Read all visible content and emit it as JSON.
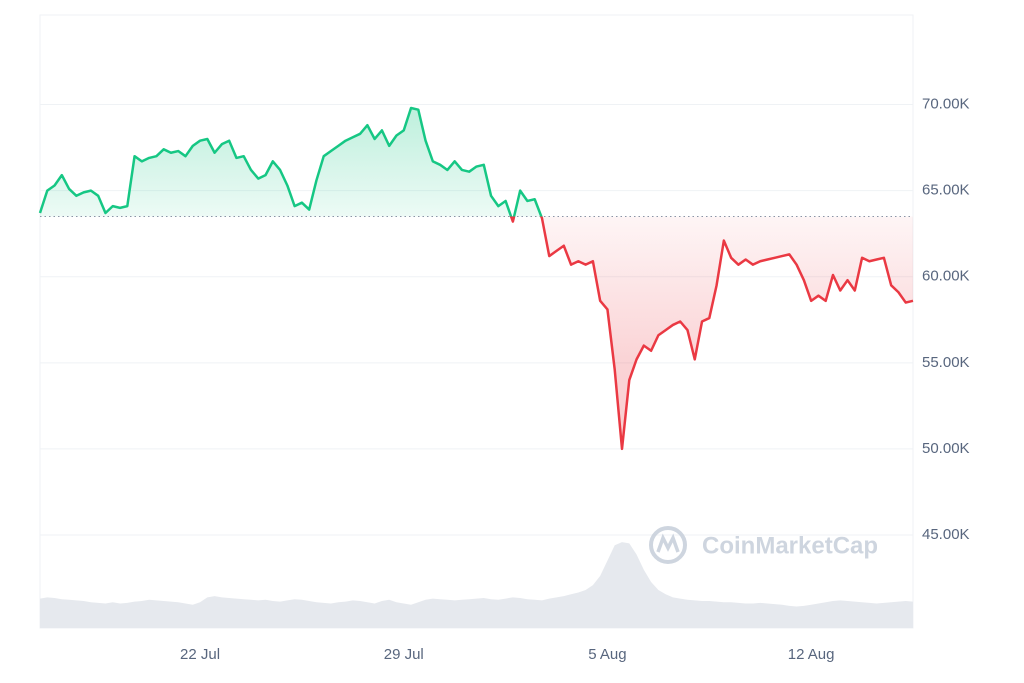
{
  "chart_data": {
    "type": "line",
    "categories": [
      null,
      null,
      null,
      null,
      null,
      null,
      null,
      null,
      null,
      null,
      null,
      null,
      null,
      null,
      null,
      null,
      null,
      null,
      null,
      null,
      null,
      null,
      "22 Jul",
      null,
      null,
      null,
      null,
      null,
      null,
      null,
      null,
      null,
      null,
      null,
      null,
      null,
      null,
      null,
      null,
      null,
      null,
      null,
      null,
      null,
      null,
      null,
      null,
      null,
      null,
      null,
      "29 Jul",
      null,
      null,
      null,
      null,
      null,
      null,
      null,
      null,
      null,
      null,
      null,
      null,
      null,
      null,
      null,
      null,
      null,
      null,
      null,
      null,
      null,
      null,
      null,
      null,
      null,
      null,
      null,
      "5 Aug",
      null,
      null,
      null,
      null,
      null,
      null,
      null,
      null,
      null,
      null,
      null,
      null,
      null,
      null,
      null,
      null,
      null,
      null,
      null,
      null,
      null,
      null,
      null,
      null,
      null,
      null,
      null,
      "12 Aug",
      null,
      null,
      null,
      null,
      null,
      null,
      null,
      null,
      null,
      null,
      null,
      null,
      null,
      null
    ],
    "values": [
      63700,
      65000,
      65300,
      65900,
      65100,
      64700,
      64900,
      65000,
      64700,
      63700,
      64100,
      64000,
      64100,
      67000,
      66700,
      66900,
      67000,
      67400,
      67200,
      67300,
      67000,
      67600,
      67900,
      68000,
      67200,
      67700,
      67900,
      66900,
      67000,
      66200,
      65700,
      65900,
      66700,
      66200,
      65300,
      64100,
      64300,
      63900,
      65600,
      67000,
      67300,
      67600,
      67900,
      68100,
      68300,
      68800,
      68000,
      68500,
      67600,
      68200,
      68500,
      69800,
      69700,
      67900,
      66700,
      66500,
      66200,
      66700,
      66200,
      66100,
      66400,
      66500,
      64700,
      64100,
      64400,
      63200,
      65000,
      64400,
      64500,
      63400,
      61200,
      61500,
      61800,
      60700,
      60900,
      60700,
      60900,
      58600,
      58100,
      54600,
      50000,
      54000,
      55200,
      56000,
      55700,
      56600,
      56900,
      57200,
      57400,
      56900,
      55200,
      57400,
      57600,
      59500,
      62100,
      61100,
      60700,
      61000,
      60700,
      60900,
      61000,
      61100,
      61200,
      61300,
      60700,
      59800,
      58600,
      58900,
      58600,
      60100,
      59200,
      59800,
      59200,
      61100,
      60900,
      61000,
      61100,
      59500,
      59100,
      58500,
      58600
    ],
    "baseline": 63500,
    "above_color": "#16c784",
    "below_color": "#ea3943",
    "ylim": [
      39600,
      75200
    ],
    "yticks": [
      {
        "value": 45000,
        "label": "45.00K"
      },
      {
        "value": 50000,
        "label": "50.00K"
      },
      {
        "value": 55000,
        "label": "55.00K"
      },
      {
        "value": 60000,
        "label": "60.00K"
      },
      {
        "value": 65000,
        "label": "65.00K"
      },
      {
        "value": 70000,
        "label": "70.00K"
      }
    ],
    "grid": true,
    "volume": {
      "axis": "y2",
      "color": "#e6e9ee",
      "values": [
        48,
        50,
        49,
        47,
        46,
        45,
        44,
        42,
        41,
        40,
        42,
        40,
        41,
        43,
        44,
        46,
        45,
        44,
        43,
        42,
        40,
        38,
        42,
        50,
        52,
        50,
        49,
        48,
        47,
        46,
        45,
        46,
        44,
        43,
        45,
        47,
        46,
        44,
        42,
        41,
        40,
        42,
        43,
        45,
        44,
        42,
        40,
        44,
        46,
        42,
        40,
        38,
        42,
        46,
        48,
        47,
        46,
        45,
        46,
        47,
        48,
        49,
        47,
        46,
        48,
        50,
        49,
        47,
        46,
        45,
        48,
        50,
        52,
        55,
        58,
        62,
        70,
        85,
        110,
        135,
        140,
        138,
        120,
        95,
        75,
        62,
        55,
        50,
        48,
        46,
        45,
        44,
        44,
        43,
        42,
        42,
        41,
        40,
        40,
        41,
        40,
        39,
        38,
        36,
        35,
        36,
        38,
        40,
        42,
        44,
        45,
        44,
        43,
        42,
        41,
        40,
        41,
        42,
        43,
        44,
        43
      ]
    },
    "y2lim": [
      0,
      1000
    ],
    "watermark": "CoinMarketCap"
  }
}
